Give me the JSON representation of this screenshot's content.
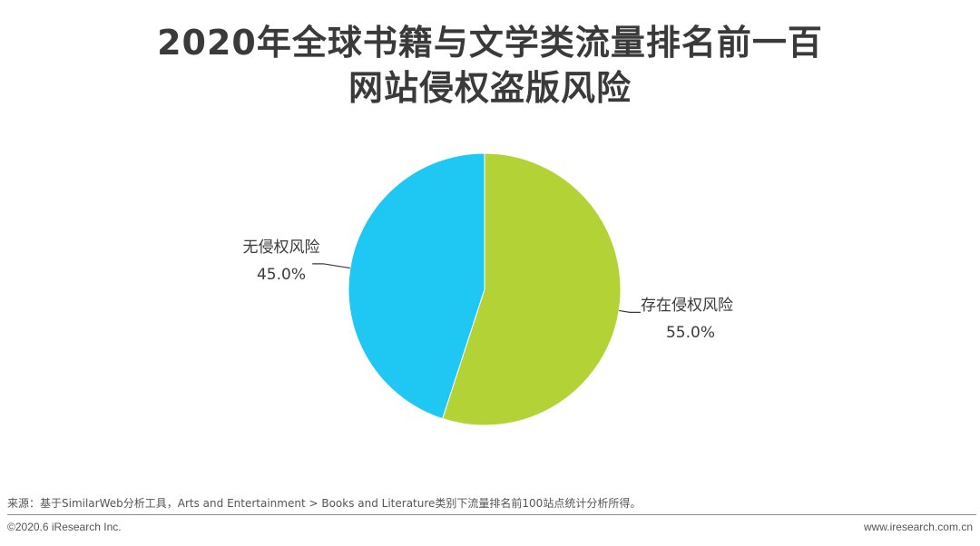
{
  "title": {
    "line1": "2020年全球书籍与文学类流量排名前一百",
    "line2": "网站侵权盗版风险"
  },
  "chart_data": {
    "type": "pie",
    "title": "2020年全球书籍与文学类流量排名前一百网站侵权盗版风险",
    "slices": [
      {
        "label": "存在侵权风险",
        "value": 55.0,
        "value_label": "55.0%",
        "color": "#b2d235"
      },
      {
        "label": "无侵权风险",
        "value": 45.0,
        "value_label": "45.0%",
        "color": "#1fc8f3"
      }
    ],
    "start_angle": "12 o'clock",
    "direction": "clockwise"
  },
  "footer": {
    "source": "来源：基于SimilarWeb分析工具，Arts and Entertainment > Books and Literature类别下流量排名前100站点统计分析所得。",
    "copyright": "©2020.6 iResearch Inc.",
    "website": "www.iresearch.com.cn"
  }
}
